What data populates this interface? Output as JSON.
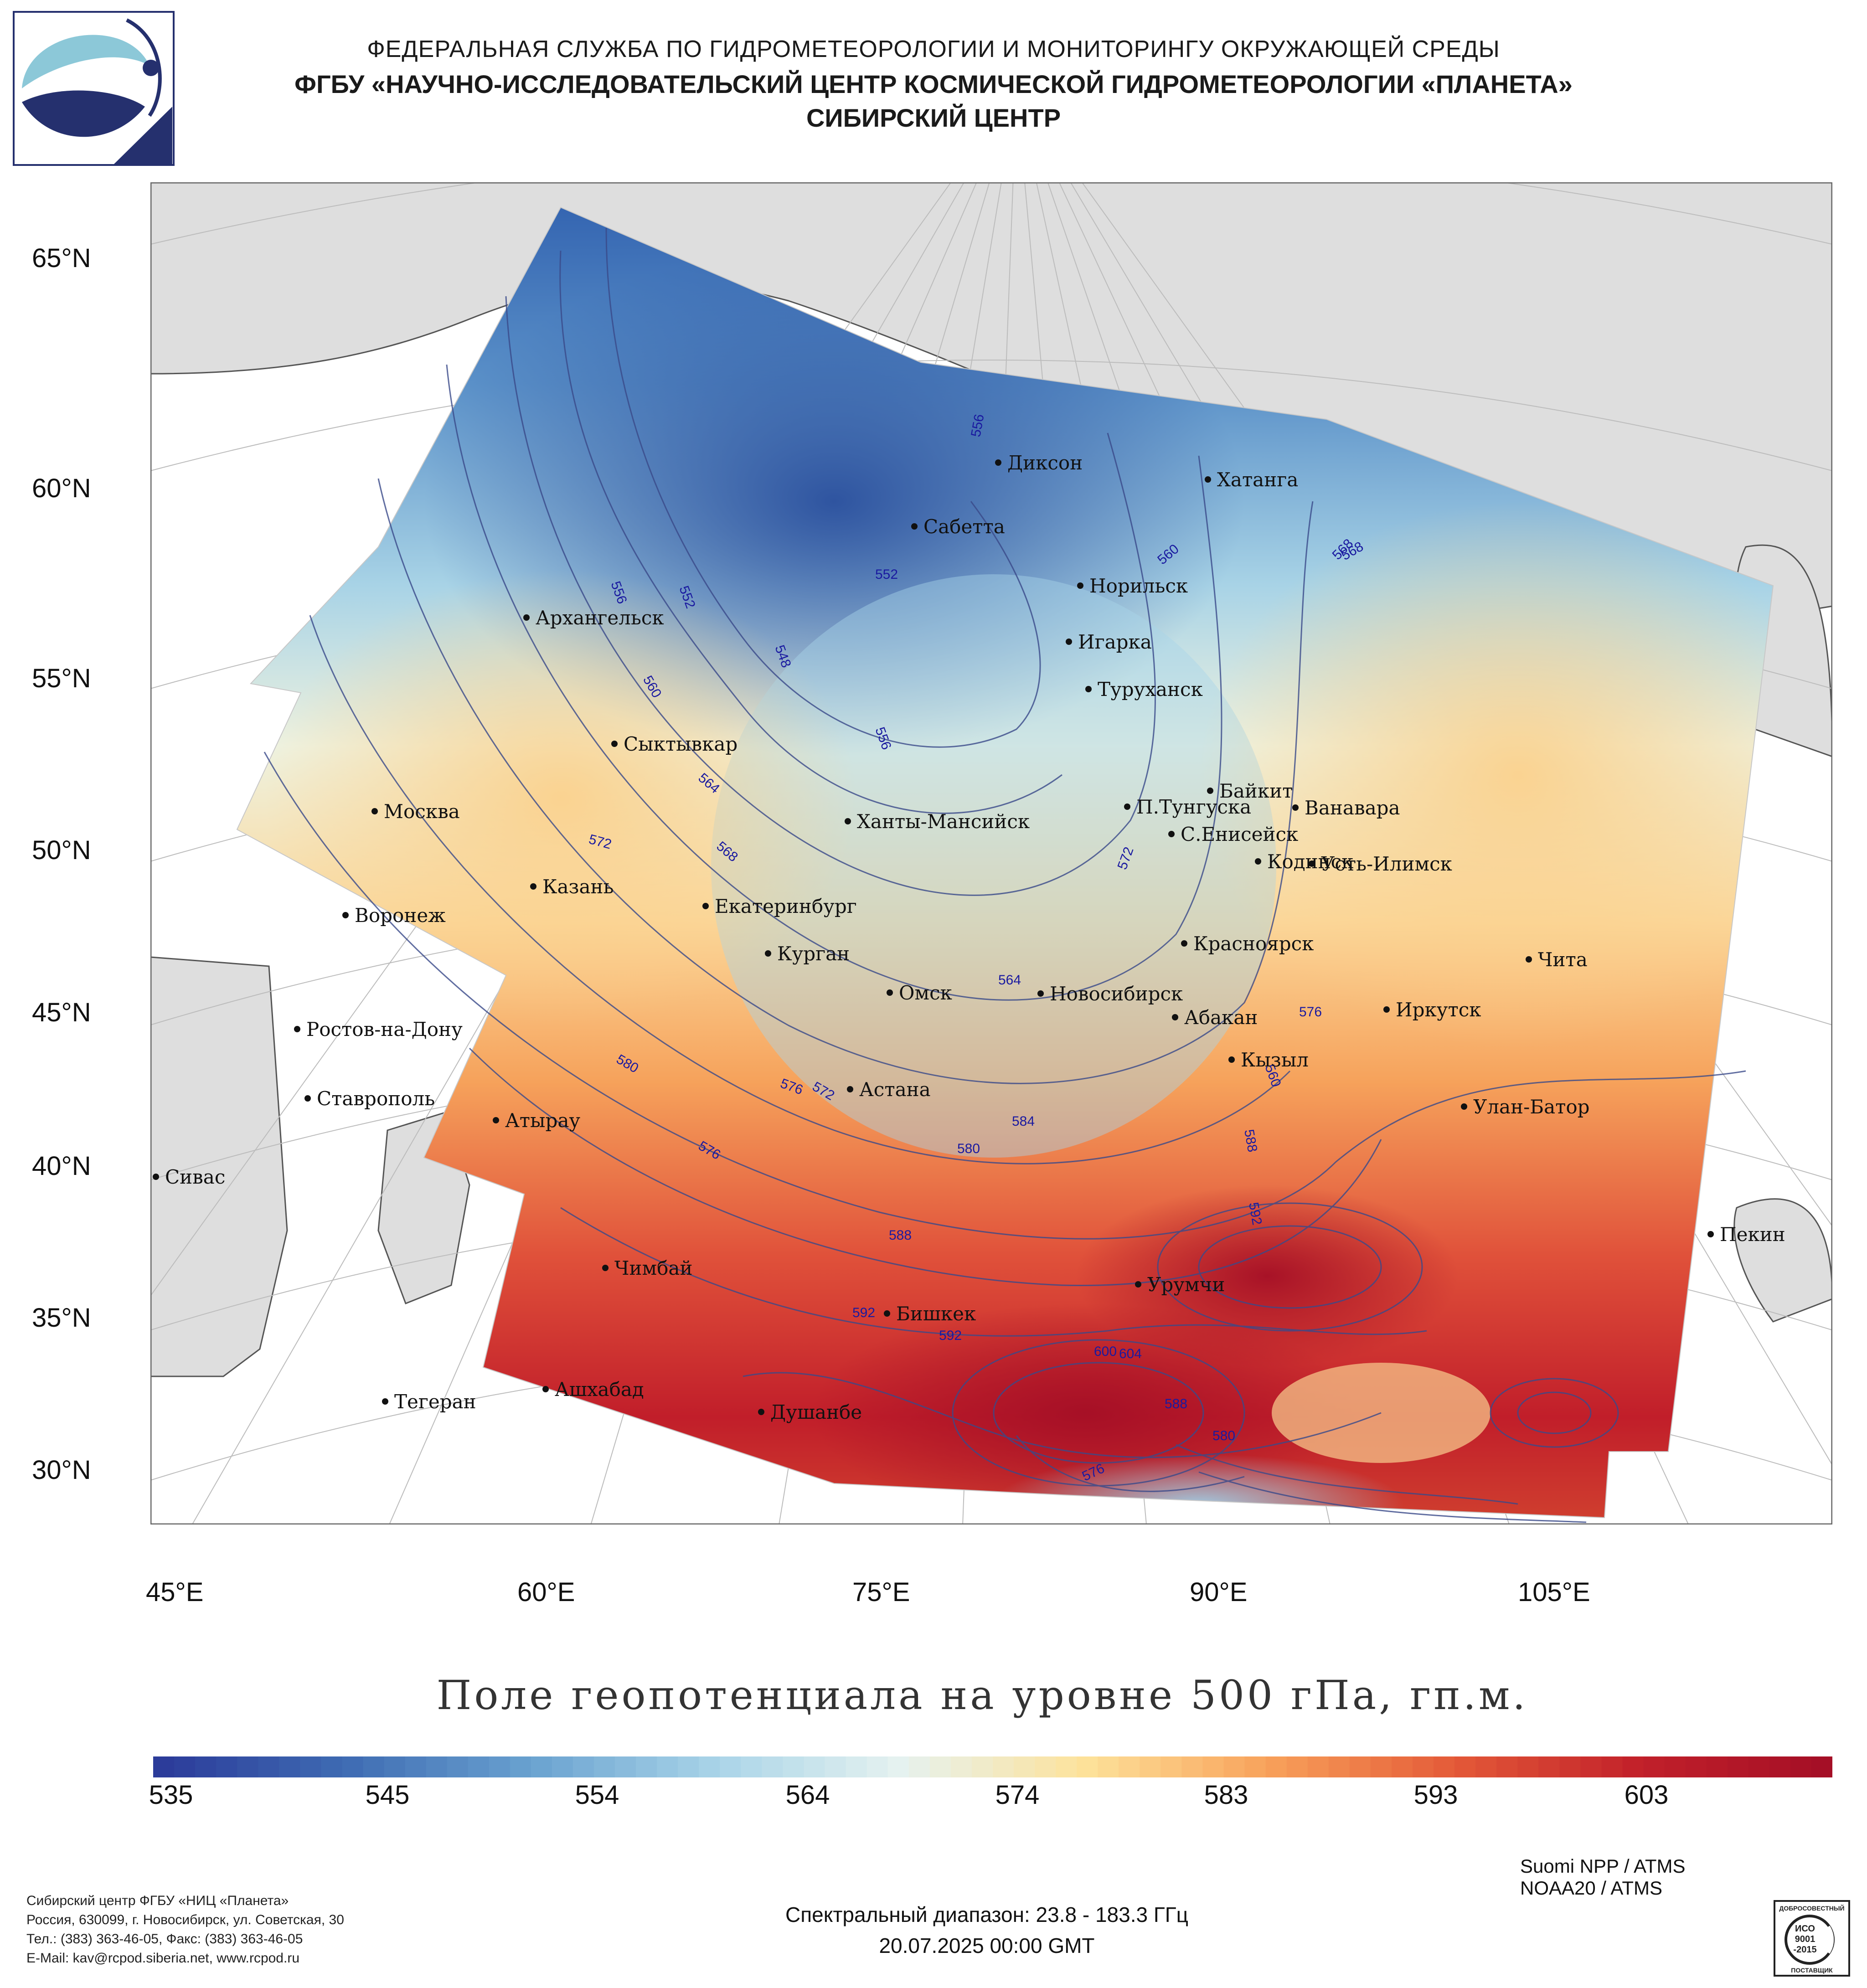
{
  "header": {
    "line1": "ФЕДЕРАЛЬНАЯ СЛУЖБА ПО ГИДРОМЕТЕОРОЛОГИИ И МОНИТОРИНГУ ОКРУЖАЮЩЕЙ СРЕДЫ",
    "line2": "ФГБУ «НАУЧНО-ИССЛЕДОВАТЕЛЬСКИЙ ЦЕНТР КОСМИЧЕСКОЙ ГИДРОМЕТЕОРОЛОГИИ «ПЛАНЕТА»",
    "line3": "СИБИРСКИЙ ЦЕНТР"
  },
  "map": {
    "lat_labels": [
      "65°N",
      "60°N",
      "55°N",
      "50°N",
      "45°N",
      "40°N",
      "35°N",
      "30°N"
    ],
    "lon_labels": [
      "45°E",
      "60°E",
      "75°E",
      "90°E",
      "105°E"
    ],
    "cities": [
      "Диксон",
      "Хатанга",
      "Сабетта",
      "Норильск",
      "Архангельск",
      "Игарка",
      "Туруханск",
      "Сыктывкар",
      "Байкит",
      "Москва",
      "П.Тунгуска",
      "Ванавара",
      "Ханты-Мансийск",
      "С.Енисейск",
      "Кодинск",
      "Усть-Илимск",
      "Казань",
      "Екатеринбург",
      "Воронеж",
      "Курган",
      "Красноярск",
      "Чита",
      "Омск",
      "Новосибирск",
      "Иркутск",
      "Абакан",
      "Ростов-на-Дону",
      "Кызыл",
      "Астана",
      "Ставрополь",
      "Улан-Батор",
      "Атырау",
      "Сивас",
      "Пекин",
      "Чимбай",
      "Урумчи",
      "Бишкек",
      "Ашхабад",
      "Тегеран",
      "Душанбе"
    ],
    "contour_labels": [
      "556",
      "552",
      "548",
      "556",
      "560",
      "564",
      "568",
      "572",
      "568",
      "560",
      "556",
      "552",
      "572",
      "576",
      "580",
      "584",
      "588",
      "592",
      "600",
      "592",
      "588",
      "580",
      "576",
      "576",
      "564",
      "560",
      "568",
      "580",
      "572",
      "576",
      "588",
      "592",
      "604"
    ]
  },
  "title": "Поле геопотенциала на уровне 500 гПа, гп.м.",
  "colorbar": {
    "ticks": [
      "535",
      "545",
      "554",
      "564",
      "574",
      "583",
      "593",
      "603"
    ],
    "colors": [
      "#2c3c9a",
      "#3f6cb3",
      "#6aa2d0",
      "#a9d4e8",
      "#e6f2f0",
      "#fde29a",
      "#f8a15a",
      "#e45a38",
      "#c2212a",
      "#a50f26"
    ]
  },
  "footer": {
    "org_lines": [
      "Сибирский центр ФГБУ «НИЦ «Планета»",
      "Россия, 630099, г. Новосибирск, ул. Советская, 30",
      "Тел.: (383) 363-46-05, Факс: (383) 363-46-05",
      "E-Mail: kav@rcpod.siberia.net, www.rcpod.ru"
    ],
    "spectral": "Спектральный диапазон: 23.8 - 183.3 ГГц",
    "datetime": "20.07.2025 00:00 GMT",
    "sat1": "Suomi NPP / ATMS",
    "sat2": "NOAA20 / ATMS",
    "iso": [
      "ДОБРОСОВЕСТНЫЙ",
      "ИСО",
      "9001",
      "-2015",
      "ПОСТАВЩИК"
    ]
  }
}
